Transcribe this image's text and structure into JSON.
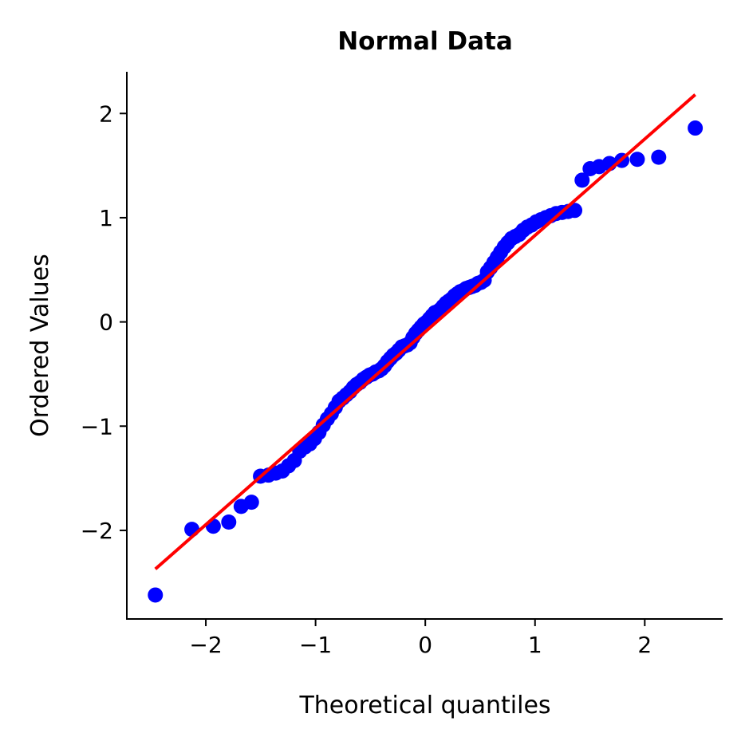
{
  "chart_data": {
    "type": "scatter",
    "title": "Normal Data",
    "xlabel": "Theoretical quantiles",
    "ylabel": "Ordered Values",
    "xlim": [
      -2.72,
      2.71
    ],
    "ylim": [
      -2.85,
      2.4
    ],
    "xticks": [
      -2,
      -1,
      0,
      1,
      2
    ],
    "xtick_labels": [
      "−2",
      "−1",
      "0",
      "1",
      "2"
    ],
    "yticks": [
      -2,
      -1,
      0,
      1,
      2
    ],
    "ytick_labels": [
      "−2",
      "−1",
      "0",
      "1",
      "2"
    ],
    "grid": false,
    "point_color": "#0000ff",
    "line_color": "#ff0000",
    "fit_line": {
      "slope": 0.925,
      "intercept": -0.095
    },
    "x": [
      -2.46,
      -2.127,
      -1.932,
      -1.791,
      -1.678,
      -1.584,
      -1.502,
      -1.429,
      -1.362,
      -1.302,
      -1.246,
      -1.193,
      -1.144,
      -1.097,
      -1.053,
      -1.01,
      -0.969,
      -0.93,
      -0.892,
      -0.856,
      -0.82,
      -0.786,
      -0.752,
      -0.72,
      -0.687,
      -0.656,
      -0.625,
      -0.595,
      -0.566,
      -0.537,
      -0.508,
      -0.48,
      -0.452,
      -0.425,
      -0.398,
      -0.371,
      -0.344,
      -0.318,
      -0.292,
      -0.266,
      -0.24,
      -0.214,
      -0.189,
      -0.163,
      -0.138,
      -0.113,
      -0.088,
      -0.063,
      -0.038,
      -0.013,
      0.013,
      0.038,
      0.063,
      0.088,
      0.113,
      0.138,
      0.163,
      0.189,
      0.214,
      0.24,
      0.266,
      0.292,
      0.318,
      0.344,
      0.371,
      0.398,
      0.425,
      0.452,
      0.48,
      0.508,
      0.537,
      0.566,
      0.595,
      0.625,
      0.656,
      0.687,
      0.72,
      0.752,
      0.786,
      0.82,
      0.856,
      0.892,
      0.93,
      0.969,
      1.01,
      1.053,
      1.097,
      1.144,
      1.193,
      1.246,
      1.302,
      1.362,
      1.429,
      1.502,
      1.584,
      1.678,
      1.791,
      1.932,
      2.127,
      2.46
    ],
    "y": [
      -2.62,
      -1.99,
      -1.96,
      -1.92,
      -1.77,
      -1.73,
      -1.48,
      -1.47,
      -1.45,
      -1.43,
      -1.38,
      -1.33,
      -1.24,
      -1.2,
      -1.17,
      -1.12,
      -1.06,
      -0.99,
      -0.93,
      -0.88,
      -0.82,
      -0.76,
      -0.73,
      -0.7,
      -0.67,
      -0.63,
      -0.6,
      -0.58,
      -0.55,
      -0.53,
      -0.51,
      -0.5,
      -0.48,
      -0.47,
      -0.45,
      -0.42,
      -0.38,
      -0.35,
      -0.32,
      -0.3,
      -0.27,
      -0.24,
      -0.23,
      -0.22,
      -0.2,
      -0.15,
      -0.11,
      -0.08,
      -0.05,
      -0.02,
      0.0,
      0.03,
      0.06,
      0.09,
      0.1,
      0.12,
      0.15,
      0.18,
      0.2,
      0.22,
      0.25,
      0.27,
      0.29,
      0.3,
      0.32,
      0.33,
      0.34,
      0.35,
      0.37,
      0.38,
      0.4,
      0.48,
      0.52,
      0.57,
      0.62,
      0.67,
      0.72,
      0.76,
      0.8,
      0.82,
      0.84,
      0.88,
      0.91,
      0.93,
      0.96,
      0.98,
      1.0,
      1.02,
      1.04,
      1.05,
      1.06,
      1.07,
      1.36,
      1.47,
      1.49,
      1.52,
      1.55,
      1.56,
      1.58,
      1.86
    ]
  }
}
